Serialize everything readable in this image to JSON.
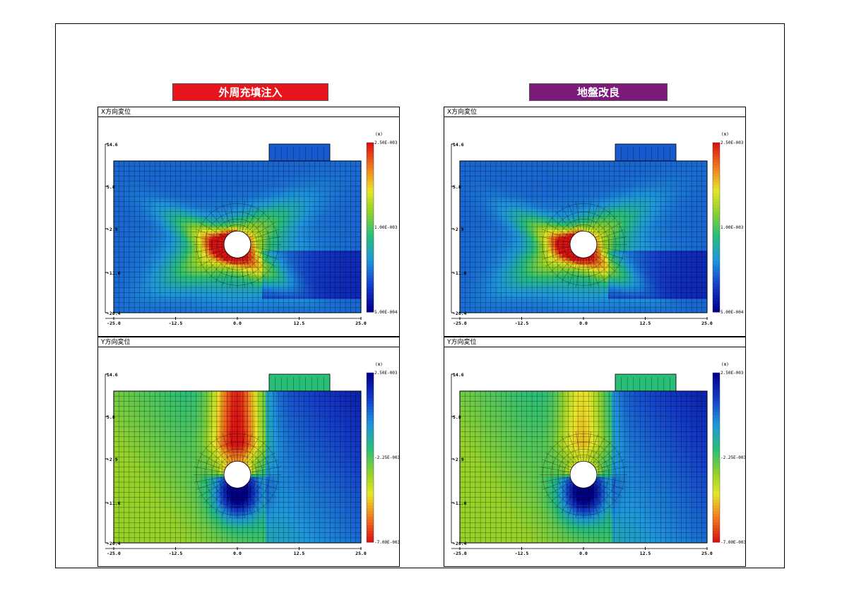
{
  "columns": [
    {
      "title": "外周充填注入",
      "color": "#e8141c"
    },
    {
      "title": "地盤改良",
      "color": "#7b1a78"
    }
  ],
  "panels": [
    {
      "title": "X方向変位",
      "legend_unit": "(m)",
      "legend_top": "2.50E-003",
      "legend_mid": "1.00E-003",
      "legend_bottom": "5.00E-004",
      "colormap": "jet"
    },
    {
      "title": "Y方向変位",
      "legend_unit": "(m)",
      "legend_top": "2.50E-003",
      "legend_mid": "-2.25E-003",
      "legend_bottom": "-7.00E-003",
      "colormap": "jet-reversed"
    },
    {
      "title": "X方向変位",
      "legend_unit": "(m)",
      "legend_top": "2.50E-003",
      "legend_mid": "1.00E-003",
      "legend_bottom": "5.00E-004",
      "colormap": "jet"
    },
    {
      "title": "Y方向変位",
      "legend_unit": "(m)",
      "legend_top": "2.50E-003",
      "legend_mid": "-2.25E-003",
      "legend_bottom": "-7.00E-003",
      "colormap": "jet-reversed"
    }
  ],
  "chart_data": [
    {
      "type": "heatmap",
      "title": "X方向変位",
      "case": "外周充填注入",
      "x_ticks": [
        "-25.0",
        "-12.5",
        "0.0",
        "12.5",
        "25.0"
      ],
      "y_ticks": [
        "14.6",
        "5.8",
        "-2.9",
        "-11.6",
        "-20.4"
      ],
      "xlim": [
        -25,
        25
      ],
      "ylim": [
        -20.4,
        14.6
      ],
      "colorbar": {
        "unit": "(m)",
        "max": 0.0025,
        "mid": 0.001,
        "min": 0.0005,
        "labels": [
          "2.50E-003",
          "1.00E-003",
          "5.00E-004"
        ]
      }
    },
    {
      "type": "heatmap",
      "title": "Y方向変位",
      "case": "外周充填注入",
      "x_ticks": [
        "-25.0",
        "-12.5",
        "0.0",
        "12.5",
        "25.0"
      ],
      "y_ticks": [
        "14.6",
        "5.8",
        "-2.9",
        "-11.6",
        "-20.4"
      ],
      "xlim": [
        -25,
        25
      ],
      "ylim": [
        -20.4,
        14.6
      ],
      "colorbar": {
        "unit": "(m)",
        "max": 0.0025,
        "mid": -0.00225,
        "min": -0.007,
        "labels": [
          "2.50E-003",
          "-2.25E-003",
          "-7.00E-003"
        ]
      }
    },
    {
      "type": "heatmap",
      "title": "X方向変位",
      "case": "地盤改良",
      "x_ticks": [
        "-25.0",
        "-12.5",
        "0.0",
        "12.5",
        "25.0"
      ],
      "y_ticks": [
        "14.6",
        "5.8",
        "-2.9",
        "-11.6",
        "-20.4"
      ],
      "xlim": [
        -25,
        25
      ],
      "ylim": [
        -20.4,
        14.6
      ],
      "colorbar": {
        "unit": "(m)",
        "max": 0.0025,
        "mid": 0.001,
        "min": 0.0005,
        "labels": [
          "2.50E-003",
          "1.00E-003",
          "5.00E-004"
        ]
      }
    },
    {
      "type": "heatmap",
      "title": "Y方向変位",
      "case": "地盤改良",
      "x_ticks": [
        "-25.0",
        "-12.5",
        "0.0",
        "12.5",
        "25.0"
      ],
      "y_ticks": [
        "14.6",
        "5.8",
        "-2.9",
        "-11.6",
        "-20.4"
      ],
      "xlim": [
        -25,
        25
      ],
      "ylim": [
        -20.4,
        14.6
      ],
      "colorbar": {
        "unit": "(m)",
        "max": 0.0025,
        "mid": -0.00225,
        "min": -0.007,
        "labels": [
          "2.50E-003",
          "-2.25E-003",
          "-7.00E-003"
        ]
      }
    }
  ]
}
